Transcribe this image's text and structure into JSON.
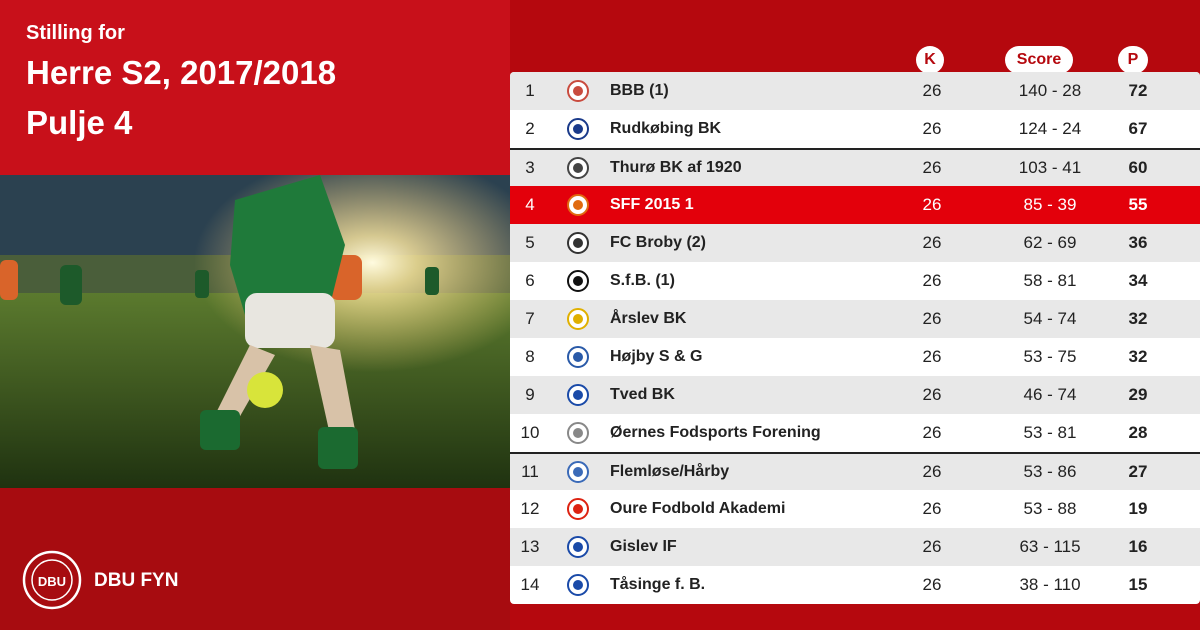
{
  "header": {
    "subtitle": "Stilling for",
    "title_line1": "Herre S2, 2017/2018",
    "title_line2": "Pulje 4"
  },
  "brand": {
    "name": "DBU FYN",
    "logo_text": "DBU"
  },
  "columns": {
    "k": "K",
    "score": "Score",
    "p": "P"
  },
  "colors": {
    "brand_red": "#c8101a",
    "highlight_red": "#e3000b"
  },
  "rows": [
    {
      "rank": "1",
      "team": "BBB (1)",
      "k": "26",
      "score": "140 - 28",
      "p": "72",
      "logo": "bbb-crest-icon"
    },
    {
      "rank": "2",
      "team": "Rudkøbing BK",
      "k": "26",
      "score": "124 - 24",
      "p": "67",
      "logo": "rudkobing-shield-icon"
    },
    {
      "rank": "3",
      "team": "Thurø BK af 1920",
      "k": "26",
      "score": "103 - 41",
      "p": "60",
      "logo": "thuro-round-icon"
    },
    {
      "rank": "4",
      "team": "SFF 2015 1",
      "k": "26",
      "score": "85 - 39",
      "p": "55",
      "logo": "sff-ball-icon"
    },
    {
      "rank": "5",
      "team": "FC Broby (2)",
      "k": "26",
      "score": "62 - 69",
      "p": "36",
      "logo": "broby-badge-icon"
    },
    {
      "rank": "6",
      "team": "S.f.B. (1)",
      "k": "26",
      "score": "58 - 81",
      "p": "34",
      "logo": "sfb-text-icon"
    },
    {
      "rank": "7",
      "team": "Årslev BK",
      "k": "26",
      "score": "54 - 74",
      "p": "32",
      "logo": "arslev-round-icon"
    },
    {
      "rank": "8",
      "team": "Højby S & G",
      "k": "26",
      "score": "53 - 75",
      "p": "32",
      "logo": "hojby-round-icon"
    },
    {
      "rank": "9",
      "team": "Tved BK",
      "k": "26",
      "score": "46 - 74",
      "p": "29",
      "logo": "tved-shield-icon"
    },
    {
      "rank": "10",
      "team": "Øernes Fodsports Forening",
      "k": "26",
      "score": "53 - 81",
      "p": "28",
      "logo": "oernes-shield-icon"
    },
    {
      "rank": "11",
      "team": "Flemløse/Hårby",
      "k": "26",
      "score": "53 - 86",
      "p": "27",
      "logo": "flemlose-crest-icon"
    },
    {
      "rank": "12",
      "team": "Oure Fodbold Akademi",
      "k": "26",
      "score": "53 - 88",
      "p": "19",
      "logo": "oure-logo-icon"
    },
    {
      "rank": "13",
      "team": "Gislev IF",
      "k": "26",
      "score": "63 - 115",
      "p": "16",
      "logo": "gislev-shield-icon"
    },
    {
      "rank": "14",
      "team": "Tåsinge  f. B.",
      "k": "26",
      "score": "38 - 110",
      "p": "15",
      "logo": "tasinge-round-icon"
    }
  ]
}
